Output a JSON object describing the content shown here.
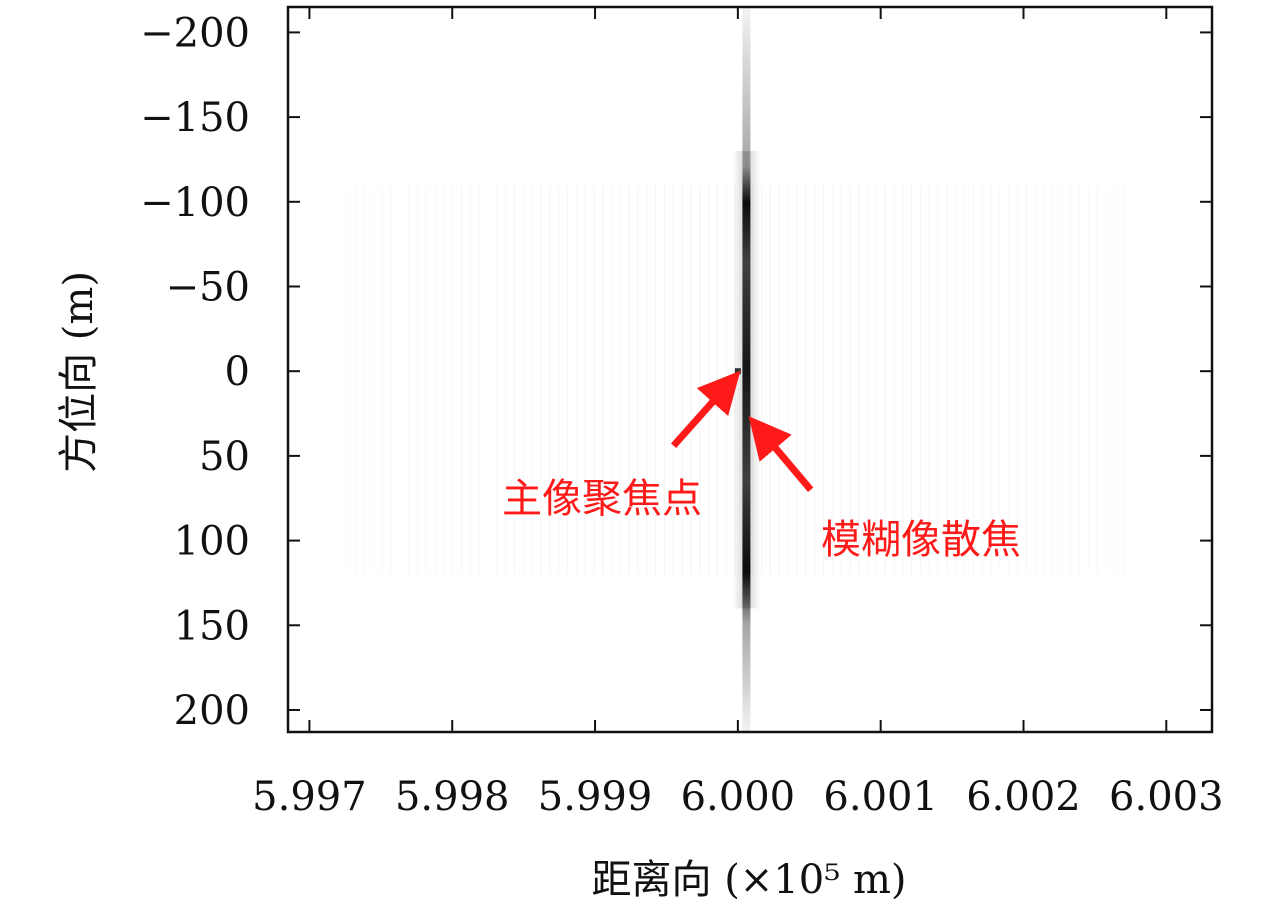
{
  "chart_data": {
    "type": "heatmap",
    "title": "",
    "xlabel": "距离向 (×10⁵ m)",
    "ylabel": "方位向 (m)",
    "xlim": [
      5.99685,
      6.00332
    ],
    "ylim": [
      -215,
      213
    ],
    "y_inverted": true,
    "x_ticks": [
      5.997,
      5.998,
      5.999,
      6.0,
      6.001,
      6.002,
      6.003
    ],
    "x_tick_labels": [
      "5.997",
      "5.998",
      "5.999",
      "6.000",
      "6.001",
      "6.002",
      "6.003"
    ],
    "y_ticks": [
      -200,
      -150,
      -100,
      -50,
      0,
      50,
      100,
      150,
      200
    ],
    "y_tick_labels": [
      "−200",
      "−150",
      "−100",
      "−50",
      "0",
      "50",
      "100",
      "150",
      "200"
    ],
    "colormap": "grayscale (white = low, black = high)",
    "features": {
      "defocused_streak": {
        "x": 6.00006,
        "y_from": -215,
        "y_to": 213,
        "dark_y_from": -130,
        "dark_y_to": 140
      },
      "main_focus_point": {
        "x": 6.0,
        "y": 0
      },
      "sidelobe_band_x": [
        5.9972,
        6.0027
      ]
    },
    "annotations": [
      {
        "id": "main",
        "text": "主像聚焦点",
        "color": "#ff1a1a",
        "arrow_tail": [
          5.99955,
          44
        ],
        "arrow_head": [
          5.99992,
          9
        ]
      },
      {
        "id": "blur",
        "text": "模糊像散焦",
        "color": "#ff1a1a",
        "arrow_tail": [
          6.00051,
          70
        ],
        "arrow_head": [
          6.00017,
          36
        ]
      }
    ]
  }
}
